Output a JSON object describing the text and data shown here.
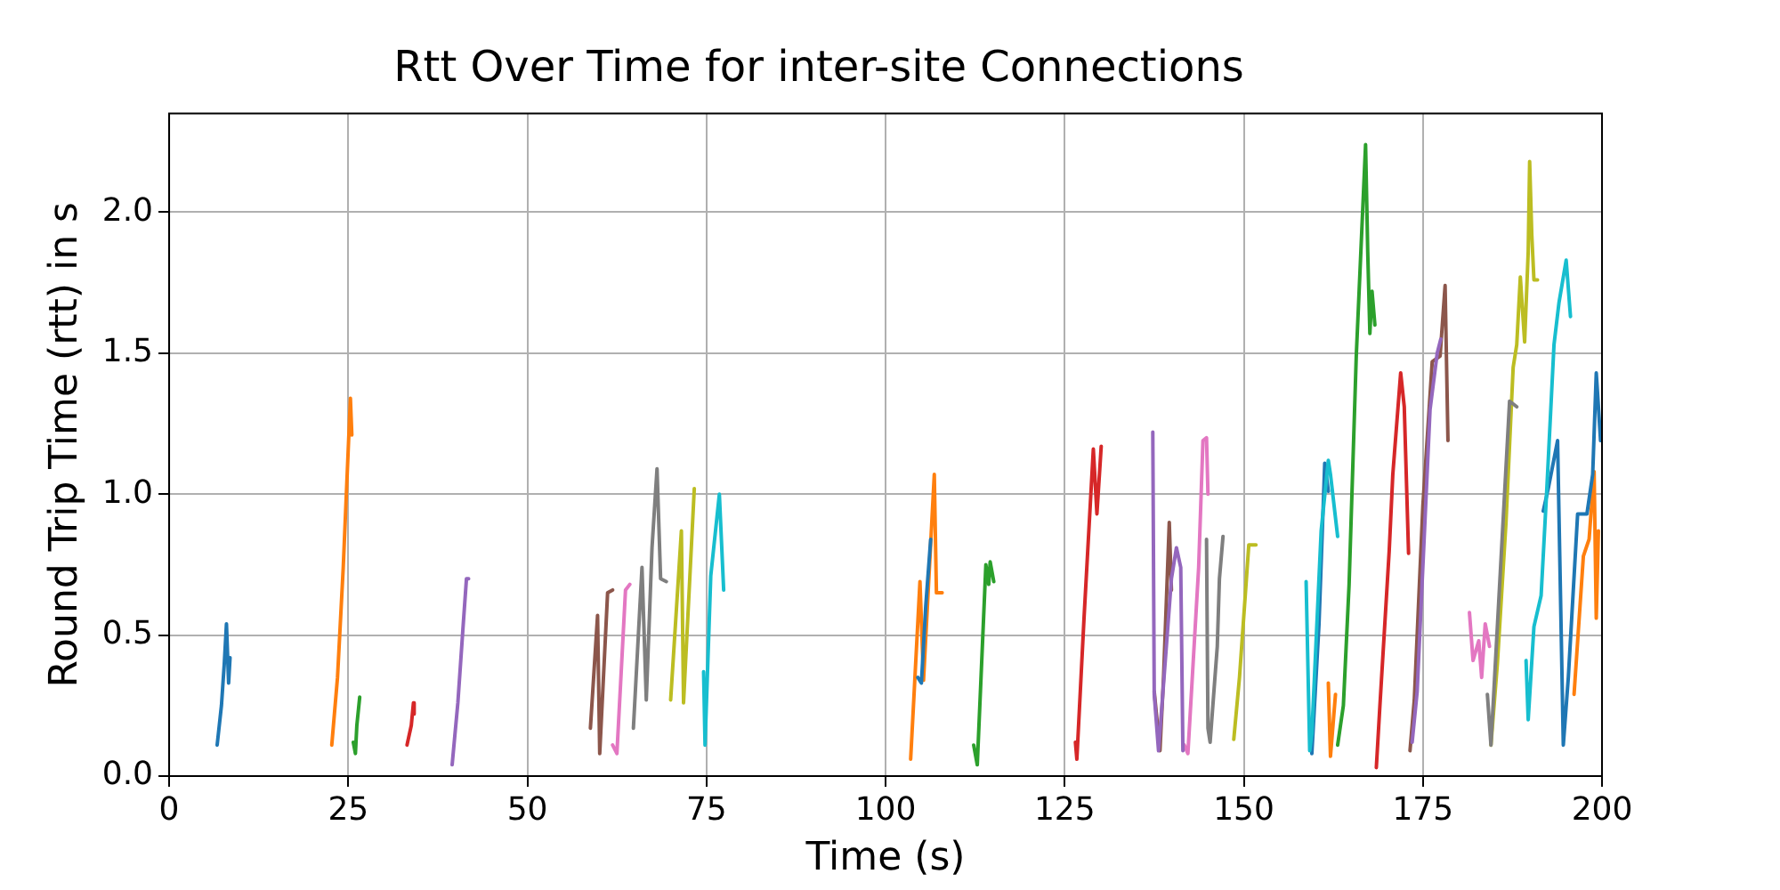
{
  "chart_data": {
    "type": "line",
    "title": "Rtt Over Time for inter-site Connections",
    "xlabel": "Time (s)",
    "ylabel": "Round Trip Time (rtt) in s",
    "xlim": [
      0,
      200
    ],
    "xticks": [
      0,
      25,
      50,
      75,
      100,
      125,
      150,
      175,
      200
    ],
    "ylim": [
      0,
      2.35
    ],
    "yticks": [
      {
        "value": 0,
        "label": "0.0"
      },
      {
        "value": 0.5,
        "label": "0.5"
      },
      {
        "value": 1,
        "label": "1.0"
      },
      {
        "value": 1.5,
        "label": "1.5"
      },
      {
        "value": 2,
        "label": "2.0"
      }
    ],
    "grid": true,
    "legend": false,
    "marker": "none",
    "line_style": "solid",
    "series": [
      {
        "color": "#1f77b4",
        "x": [
          6.7,
          7.3,
          7.7,
          8.0,
          8.3,
          8.5
        ],
        "values": [
          0.11,
          0.25,
          0.4,
          0.54,
          0.33,
          0.42
        ]
      },
      {
        "color": "#ff7f0e",
        "x": [
          22.7,
          23.5,
          24.3,
          25.3,
          25.5
        ],
        "values": [
          0.11,
          0.35,
          0.74,
          1.34,
          1.21
        ]
      },
      {
        "color": "#2ca02c",
        "x": [
          25.7,
          26.0,
          26.2,
          26.6
        ],
        "values": [
          0.12,
          0.08,
          0.18,
          0.28
        ]
      },
      {
        "color": "#d62728",
        "x": [
          33.2,
          33.8,
          34.1,
          34.2
        ],
        "values": [
          0.11,
          0.18,
          0.26,
          0.22
        ]
      },
      {
        "color": "#9467bd",
        "x": [
          39.5,
          40.3,
          41.0,
          41.5,
          41.8
        ],
        "values": [
          0.04,
          0.26,
          0.52,
          0.7,
          0.7
        ]
      },
      {
        "color": "#8c564b",
        "x": [
          58.8,
          59.8,
          60.1,
          61.2,
          61.9
        ],
        "values": [
          0.17,
          0.57,
          0.08,
          0.65,
          0.66
        ]
      },
      {
        "color": "#e377c2",
        "x": [
          61.9,
          62.5,
          63.7,
          64.3
        ],
        "values": [
          0.11,
          0.08,
          0.66,
          0.68
        ]
      },
      {
        "color": "#7f7f7f",
        "x": [
          64.8,
          66.0,
          66.6,
          67.4,
          68.1,
          68.6,
          69.4
        ],
        "values": [
          0.17,
          0.74,
          0.27,
          0.81,
          1.09,
          0.7,
          0.69
        ]
      },
      {
        "color": "#bcbd22",
        "x": [
          70.0,
          70.4,
          71.5,
          71.8,
          73.3
        ],
        "values": [
          0.27,
          0.43,
          0.87,
          0.26,
          1.02
        ]
      },
      {
        "color": "#17becf",
        "x": [
          74.6,
          74.8,
          75.6,
          76.8,
          77.4
        ],
        "values": [
          0.37,
          0.11,
          0.71,
          1.0,
          0.66
        ]
      },
      {
        "color": "#1f77b4",
        "x": [
          104.5,
          105.0,
          105.6,
          106.3
        ],
        "values": [
          0.35,
          0.33,
          0.6,
          0.84
        ]
      },
      {
        "color": "#ff7f0e",
        "x": [
          103.5,
          104.8,
          105.3,
          106.8,
          107.1,
          107.9
        ],
        "values": [
          0.06,
          0.69,
          0.34,
          1.07,
          0.65,
          0.65
        ]
      },
      {
        "color": "#2ca02c",
        "x": [
          112.3,
          112.8,
          114.0,
          114.4,
          114.6,
          115.1
        ],
        "values": [
          0.11,
          0.04,
          0.75,
          0.68,
          0.76,
          0.69
        ]
      },
      {
        "color": "#d62728",
        "x": [
          126.5,
          126.7,
          127.7,
          129.0,
          129.5,
          130.1
        ],
        "values": [
          0.12,
          0.06,
          0.56,
          1.16,
          0.93,
          1.17
        ]
      },
      {
        "color": "#9467bd",
        "x": [
          137.3,
          137.5,
          138.1,
          139.9,
          140.6,
          141.2,
          141.5
        ],
        "values": [
          1.22,
          0.29,
          0.09,
          0.7,
          0.81,
          0.74,
          0.09
        ]
      },
      {
        "color": "#8c564b",
        "x": [
          137.5,
          138.3,
          138.8,
          139.6,
          139.9
        ],
        "values": [
          0.3,
          0.09,
          0.35,
          0.9,
          0.66
        ]
      },
      {
        "color": "#e377c2",
        "x": [
          141.7,
          142.2,
          143.7,
          144.3,
          144.8,
          145.0
        ],
        "values": [
          0.11,
          0.08,
          0.74,
          1.19,
          1.2,
          1.0
        ]
      },
      {
        "color": "#7f7f7f",
        "x": [
          144.8,
          145.0,
          145.3,
          146.3,
          146.6,
          147.1
        ],
        "values": [
          0.84,
          0.17,
          0.12,
          0.46,
          0.7,
          0.85
        ]
      },
      {
        "color": "#bcbd22",
        "x": [
          148.6,
          149.4,
          150.7,
          151.7
        ],
        "values": [
          0.13,
          0.35,
          0.82,
          0.82
        ]
      },
      {
        "color": "#17becf",
        "x": [
          158.7,
          159.2,
          159.5,
          160.8,
          161.8,
          162.1,
          163.1
        ],
        "values": [
          0.69,
          0.09,
          0.15,
          0.87,
          1.12,
          1.07,
          0.85
        ]
      },
      {
        "color": "#1f77b4",
        "x": [
          159.5,
          160.5,
          161.3,
          161.8
        ],
        "values": [
          0.08,
          0.54,
          1.11,
          1.01
        ]
      },
      {
        "color": "#ff7f0e",
        "x": [
          161.8,
          162.1,
          162.8
        ],
        "values": [
          0.33,
          0.07,
          0.29
        ]
      },
      {
        "color": "#2ca02c",
        "x": [
          163.1,
          163.9,
          164.7,
          165.7,
          167.0,
          167.3,
          167.6,
          167.9,
          168.3
        ],
        "values": [
          0.11,
          0.25,
          0.68,
          1.49,
          2.24,
          1.86,
          1.57,
          1.72,
          1.6
        ]
      },
      {
        "color": "#d62728",
        "x": [
          168.5,
          169.0,
          170.3,
          170.8,
          171.9,
          172.4,
          173.0
        ],
        "values": [
          0.03,
          0.25,
          0.8,
          1.07,
          1.43,
          1.31,
          0.79
        ]
      },
      {
        "color": "#9467bd",
        "x": [
          173.5,
          174.2,
          176.0,
          177.0,
          177.5
        ],
        "values": [
          0.12,
          0.3,
          1.3,
          1.5,
          1.55
        ]
      },
      {
        "color": "#8c564b",
        "x": [
          173.2,
          173.8,
          175.0,
          176.3,
          177.4,
          178.1,
          178.5
        ],
        "values": [
          0.09,
          0.27,
          0.96,
          1.47,
          1.49,
          1.74,
          1.19
        ]
      },
      {
        "color": "#e377c2",
        "x": [
          181.5,
          182.0,
          182.8,
          183.2,
          183.7,
          184.3
        ],
        "values": [
          0.58,
          0.41,
          0.48,
          0.35,
          0.54,
          0.46
        ]
      },
      {
        "color": "#7f7f7f",
        "x": [
          184.0,
          184.5,
          187.1,
          188.1
        ],
        "values": [
          0.29,
          0.11,
          1.33,
          1.31
        ]
      },
      {
        "color": "#bcbd22",
        "x": [
          184.5,
          185.4,
          186.6,
          187.6,
          188.1,
          188.6,
          189.2,
          189.7,
          189.9,
          190.2,
          190.5,
          191.0
        ],
        "values": [
          0.11,
          0.4,
          0.9,
          1.45,
          1.53,
          1.77,
          1.54,
          1.86,
          2.18,
          1.92,
          1.76,
          1.76
        ]
      },
      {
        "color": "#17becf",
        "x": [
          189.4,
          189.7,
          190.5,
          191.5,
          192.3,
          193.3,
          194.0,
          195.0,
          195.6
        ],
        "values": [
          0.41,
          0.2,
          0.53,
          0.64,
          1.02,
          1.53,
          1.68,
          1.83,
          1.63
        ]
      },
      {
        "color": "#1f77b4",
        "x": [
          191.8,
          192.5,
          193.8,
          194.6,
          195.3,
          196.6,
          197.9,
          198.7,
          199.2,
          199.8
        ],
        "values": [
          0.94,
          1.02,
          1.19,
          0.11,
          0.35,
          0.93,
          0.93,
          1.07,
          1.43,
          1.19
        ]
      },
      {
        "color": "#ff7f0e",
        "x": [
          196.1,
          197.4,
          198.2,
          198.9,
          199.2,
          199.5
        ],
        "values": [
          0.29,
          0.78,
          0.84,
          1.08,
          0.56,
          0.87
        ]
      }
    ]
  }
}
